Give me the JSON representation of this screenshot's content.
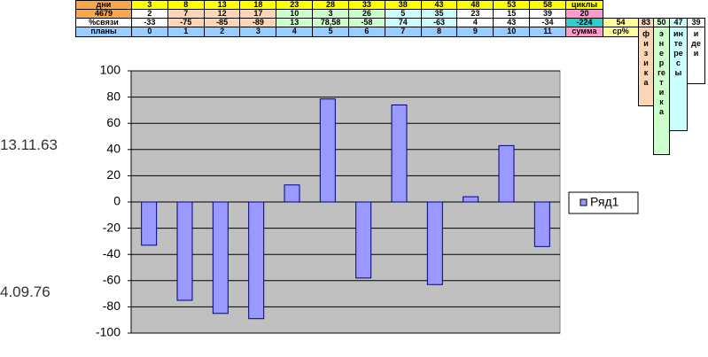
{
  "table": {
    "rows": [
      [
        "дни",
        3,
        8,
        13,
        18,
        23,
        28,
        33,
        38,
        43,
        48,
        53,
        58,
        "циклы"
      ],
      [
        4679,
        2,
        7,
        12,
        17,
        10,
        3,
        26,
        5,
        35,
        23,
        15,
        39,
        20
      ],
      [
        "%связи",
        -33,
        -75,
        -85,
        -89,
        13,
        "78,58",
        -58,
        74,
        -63,
        4,
        43,
        -34,
        -224,
        54,
        83,
        50,
        47,
        39
      ],
      [
        "планы",
        0,
        1,
        2,
        3,
        4,
        5,
        6,
        7,
        8,
        9,
        10,
        11,
        "сумма",
        "ср%"
      ]
    ],
    "vertical_headers": [
      "физика",
      "энергетика",
      "интересы",
      "идеи"
    ]
  },
  "side_labels": [
    "13.11.63",
    "4.09.76"
  ],
  "chart_data": {
    "type": "bar",
    "categories": [
      null,
      null,
      null,
      null,
      null,
      null,
      null,
      null,
      null,
      null,
      null,
      null
    ],
    "series": [
      {
        "name": "Ряд1",
        "color": "#9999ff",
        "values": [
          -33,
          -75,
          -85,
          -89,
          13,
          78.58,
          -58,
          74,
          -63,
          4,
          43,
          -34
        ]
      }
    ],
    "ylim": [
      -100,
      100
    ],
    "yticks": [
      -100,
      -80,
      -60,
      -40,
      -20,
      0,
      20,
      40,
      60,
      80,
      100
    ],
    "grid": true,
    "legend": "right"
  }
}
